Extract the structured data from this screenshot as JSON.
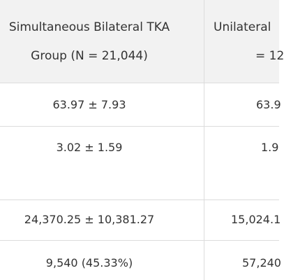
{
  "table": {
    "header": [
      [
        "Simultaneous Bilateral TKA",
        "Group (N = 21,044)"
      ],
      [
        "Unilateral",
        "= 12"
      ]
    ],
    "rows": [
      [
        "63.97 ± 7.93",
        "63.9"
      ],
      [
        "3.02 ± 1.59",
        "1.9"
      ],
      [
        "24,370.25 ± 10,381.27",
        "15,024.1"
      ],
      [
        "9,540 (45.33%)",
        "57,240"
      ]
    ]
  }
}
